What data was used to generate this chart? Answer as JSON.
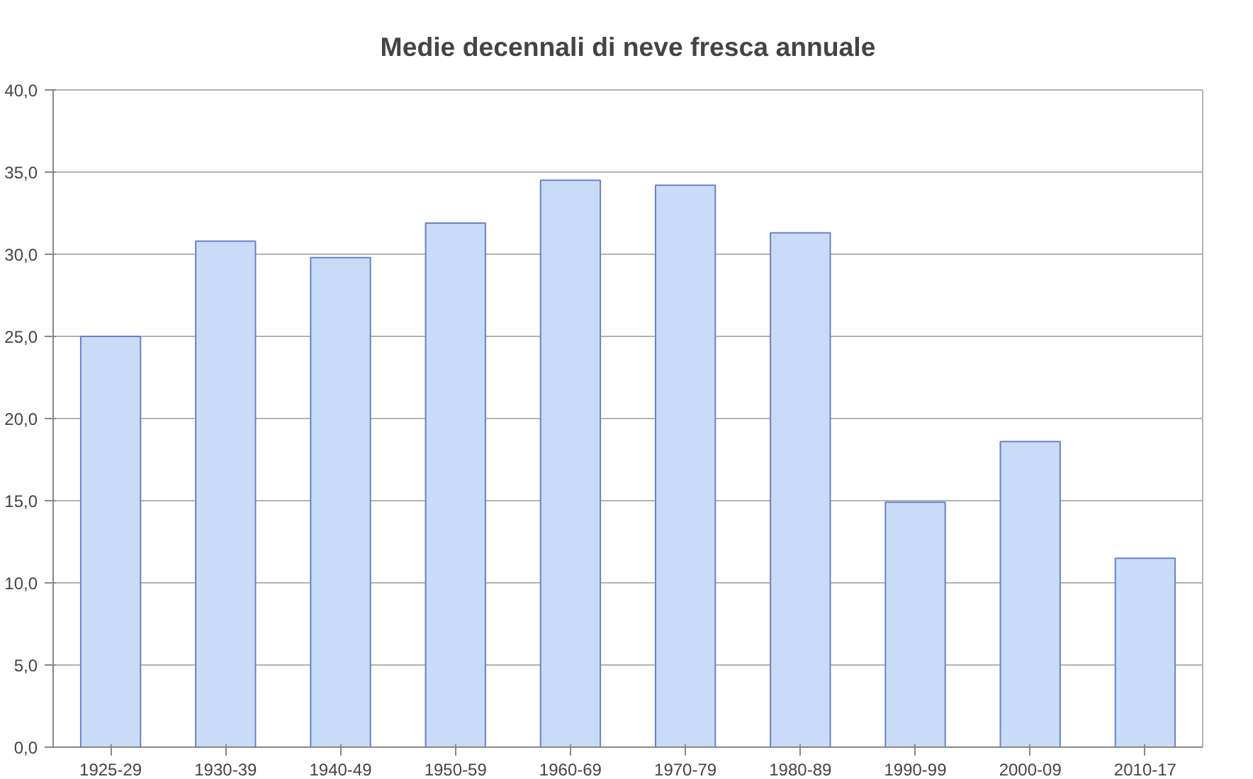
{
  "chart_data": {
    "type": "bar",
    "title": "Medie decennali di neve fresca annuale",
    "categories": [
      "1925-29",
      "1930-39",
      "1940-49",
      "1950-59",
      "1960-69",
      "1970-79",
      "1980-89",
      "1990-99",
      "2000-09",
      "2010-17"
    ],
    "values": [
      25.0,
      30.8,
      29.8,
      31.9,
      34.5,
      34.2,
      31.3,
      14.9,
      18.6,
      11.5
    ],
    "color": "#c8dcf8",
    "ylim": [
      0,
      40
    ],
    "yticks": [
      {
        "value": 0,
        "label": "0,0"
      },
      {
        "value": 5,
        "label": "5,0"
      },
      {
        "value": 10,
        "label": "10,0"
      },
      {
        "value": 15,
        "label": "15,0"
      },
      {
        "value": 20,
        "label": "20,0"
      },
      {
        "value": 25,
        "label": "25,0"
      },
      {
        "value": 30,
        "label": "30,0"
      },
      {
        "value": 35,
        "label": "35,0"
      },
      {
        "value": 40,
        "label": "40,0"
      }
    ],
    "grid": "y"
  }
}
